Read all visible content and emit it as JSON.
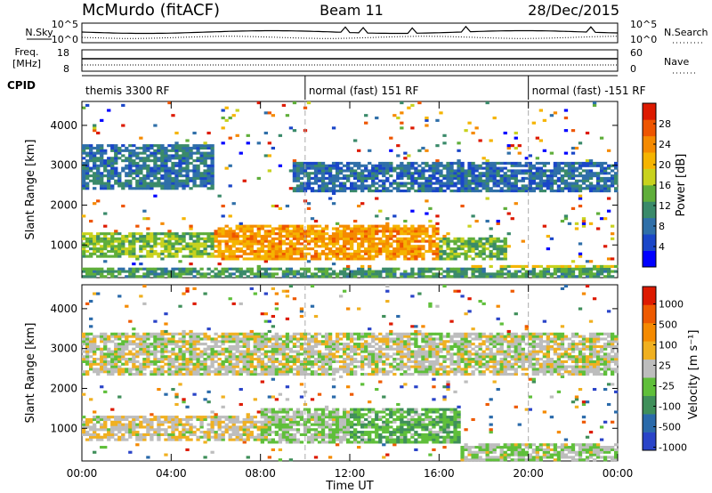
{
  "header": {
    "station": "McMurdo (fitACF)",
    "beam": "Beam 11",
    "date": "28/Dec/2015"
  },
  "noise_panel": {
    "left_label": "N.Sky",
    "right_label": "N.Search",
    "left_ticks": [
      "10^5",
      "10^0"
    ],
    "right_ticks": [
      "10^5",
      "10^0"
    ]
  },
  "freq_panel": {
    "left_label_1": "Freq.",
    "left_label_2": "[MHz]",
    "right_label": "Nave",
    "left_ticks": [
      "18",
      "8"
    ],
    "right_ticks": [
      "60",
      "0"
    ]
  },
  "cpid": {
    "label": "CPID",
    "segments": [
      {
        "label": "themis 3300 RF",
        "start_hour": 0
      },
      {
        "label": "normal (fast) 151 RF",
        "start_hour": 10
      },
      {
        "label": "normal (fast) -151 RF",
        "start_hour": 20
      }
    ]
  },
  "time_axis": {
    "label": "Time UT",
    "tick_labels": [
      "00:00",
      "04:00",
      "08:00",
      "12:00",
      "16:00",
      "20:00",
      "00:00"
    ],
    "range_hours": [
      0,
      24
    ]
  },
  "chart_data": [
    {
      "type": "heatmap",
      "panel": "power",
      "ylabel": "Slant Range [km]",
      "y_ticks": [
        1000,
        2000,
        3000,
        4000
      ],
      "ylim": [
        180,
        4600
      ],
      "xlim_hours": [
        0,
        24
      ],
      "colorbar": {
        "label": "Power [dB]",
        "tick_labels": [
          "4",
          "8",
          "12",
          "16",
          "20",
          "24",
          "28"
        ],
        "range": [
          0,
          32
        ],
        "colors": [
          "#0000ff",
          "#1a46c8",
          "#2f6fa8",
          "#3a8a6a",
          "#5fae3a",
          "#c8d21e",
          "#f5b400",
          "#f58a00",
          "#ee5500",
          "#dd1a00"
        ]
      },
      "bands": [
        {
          "start_h": 0.0,
          "end_h": 6.0,
          "range_lo": 2400,
          "range_hi": 3500,
          "value": 9
        },
        {
          "start_h": 9.5,
          "end_h": 24.0,
          "range_lo": 2300,
          "range_hi": 3100,
          "value": 8
        },
        {
          "start_h": 0.0,
          "end_h": 6.0,
          "range_lo": 700,
          "range_hi": 1300,
          "value": 15
        },
        {
          "start_h": 6.0,
          "end_h": 16.0,
          "range_lo": 600,
          "range_hi": 1500,
          "value": 23
        },
        {
          "start_h": 16.0,
          "end_h": 19.0,
          "range_lo": 600,
          "range_hi": 1200,
          "value": 14
        },
        {
          "start_h": 0.0,
          "end_h": 24.0,
          "range_lo": 180,
          "range_hi": 420,
          "value": 12
        },
        {
          "start_h": 17.5,
          "end_h": 24.0,
          "range_lo": 180,
          "range_hi": 500,
          "value": 18
        }
      ]
    },
    {
      "type": "heatmap",
      "panel": "velocity",
      "ylabel": "Slant Range [km]",
      "y_ticks": [
        1000,
        2000,
        3000,
        4000
      ],
      "ylim": [
        180,
        4600
      ],
      "xlim_hours": [
        0,
        24
      ],
      "colorbar": {
        "label": "Velocity [m s⁻¹]",
        "tick_labels": [
          "1000",
          "500",
          "100",
          "25",
          "-25",
          "-100",
          "-500",
          "-1000"
        ],
        "range": [
          -1250,
          1250
        ],
        "colors": [
          "#2a44c8",
          "#2a6aaa",
          "#3f8f5a",
          "#5fbf3a",
          "#bdbdbd",
          "#f0b020",
          "#f58a00",
          "#ee5a00",
          "#dd1a00"
        ]
      },
      "bands": [
        {
          "start_h": 0.0,
          "end_h": 24.0,
          "range_lo": 2300,
          "range_hi": 3400,
          "value": 0
        },
        {
          "start_h": 0.0,
          "end_h": 8.0,
          "range_lo": 700,
          "range_hi": 1300,
          "value": 80
        },
        {
          "start_h": 8.0,
          "end_h": 12.0,
          "range_lo": 600,
          "range_hi": 1500,
          "value": -120
        },
        {
          "start_h": 12.0,
          "end_h": 17.0,
          "range_lo": 600,
          "range_hi": 1500,
          "value": -350
        },
        {
          "start_h": 17.0,
          "end_h": 24.0,
          "range_lo": 180,
          "range_hi": 600,
          "value": -100
        }
      ]
    }
  ]
}
